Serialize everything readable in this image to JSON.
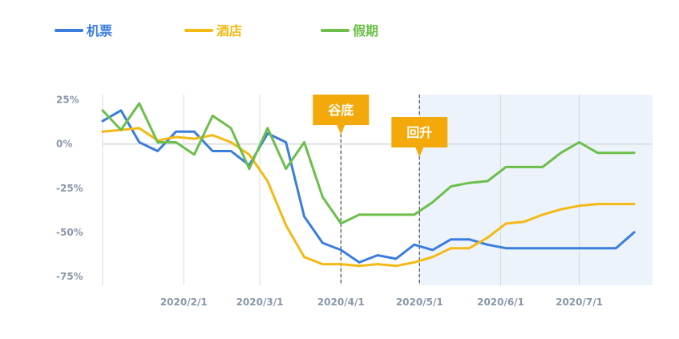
{
  "chart_data": {
    "type": "line",
    "x": [
      "2020-01-01",
      "2020-01-08",
      "2020-01-15",
      "2020-01-22",
      "2020-01-29",
      "2020-02-05",
      "2020-02-12",
      "2020-02-19",
      "2020-02-26",
      "2020-03-04",
      "2020-03-11",
      "2020-03-18",
      "2020-03-25",
      "2020-04-01",
      "2020-04-08",
      "2020-04-15",
      "2020-04-22",
      "2020-04-29",
      "2020-05-06",
      "2020-05-13",
      "2020-05-20",
      "2020-05-27",
      "2020-06-03",
      "2020-06-10",
      "2020-06-17",
      "2020-06-24",
      "2020-07-01",
      "2020-07-08",
      "2020-07-15",
      "2020-07-22"
    ],
    "xticks": [
      {
        "date": "2020-02-01",
        "label": "2020/2/1"
      },
      {
        "date": "2020-03-01",
        "label": "2020/3/1"
      },
      {
        "date": "2020-04-01",
        "label": "2020/4/1"
      },
      {
        "date": "2020-05-01",
        "label": "2020/5/1"
      },
      {
        "date": "2020-06-01",
        "label": "2020/6/1"
      },
      {
        "date": "2020-07-01",
        "label": "2020/7/1"
      }
    ],
    "xlim": [
      "2020-01-01",
      "2020-07-29"
    ],
    "yticks": [
      {
        "value": 25,
        "label": "25%"
      },
      {
        "value": 0,
        "label": "0%"
      },
      {
        "value": -25,
        "label": "-25%"
      },
      {
        "value": -50,
        "label": "-50%"
      },
      {
        "value": -75,
        "label": "-75%"
      }
    ],
    "ylim": [
      -80,
      28
    ],
    "series": [
      {
        "name": "机票",
        "color": "#3b7ddd",
        "values": [
          13,
          19,
          1,
          -4,
          7,
          7,
          -4,
          -4,
          -12,
          6,
          1,
          -41,
          -56,
          -60,
          -67,
          -63,
          -65,
          -57,
          -60,
          -54,
          -54,
          -57,
          -59,
          -59,
          -59,
          -59,
          -59,
          -59,
          -59,
          -50
        ]
      },
      {
        "name": "酒店",
        "color": "#f3b915",
        "values": [
          7,
          8,
          9,
          2,
          4,
          3,
          5,
          1,
          -6,
          -21,
          -46,
          -64,
          -68,
          -68,
          -69,
          -68,
          -69,
          -67,
          -64,
          -59,
          -59,
          -53,
          -45,
          -44,
          -40,
          -37,
          -35,
          -34,
          -34,
          -34
        ]
      },
      {
        "name": "假期",
        "color": "#6cbf4a",
        "values": [
          19,
          8,
          23,
          1,
          1,
          -6,
          16,
          9,
          -14,
          9,
          -14,
          1,
          -30,
          -45,
          -40,
          -40,
          -40,
          -40,
          -33,
          -24,
          -22,
          -21,
          -13,
          -13,
          -13,
          -5,
          1,
          -5,
          -5,
          -5
        ]
      }
    ],
    "annotations": [
      {
        "label": "谷底",
        "date": "2020-04-01",
        "color": "#f3a90a"
      },
      {
        "label": "回升",
        "date": "2020-05-01",
        "color": "#f3a90a"
      }
    ],
    "highlight_region": {
      "from": "2020-05-01",
      "to": "2020-07-29",
      "color": "#edf3fb"
    },
    "legend_position": "top-left",
    "grid": true
  }
}
